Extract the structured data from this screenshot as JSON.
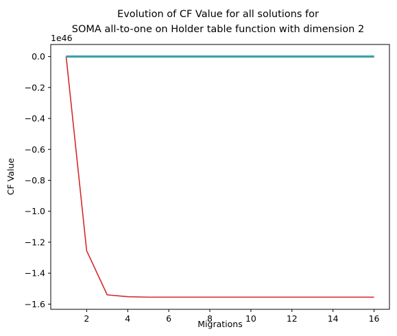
{
  "chart_data": {
    "type": "line",
    "title_lines": [
      "Evolution of CF Value for all solutions for",
      "SOMA all-to-one on Holder table function with dimension 2"
    ],
    "xlabel": "Migrations",
    "ylabel": "CF Value",
    "y_offset_label": "1e46",
    "y_scale": 1e+46,
    "xlim": [
      0.25,
      16.75
    ],
    "ylim": [
      -1.6335,
      0.0778
    ],
    "x_ticks": [
      2,
      4,
      6,
      8,
      10,
      12,
      14,
      16
    ],
    "x_tick_labels": [
      "2",
      "4",
      "6",
      "8",
      "10",
      "12",
      "14",
      "16"
    ],
    "y_ticks": [
      0.0,
      -0.2,
      -0.4,
      -0.6,
      -0.8,
      -1.0,
      -1.2,
      -1.4,
      -1.6
    ],
    "y_tick_labels": [
      "0.0",
      "−0.2",
      "−0.4",
      "−0.6",
      "−0.8",
      "−1.0",
      "−1.2",
      "−1.4",
      "−1.6"
    ],
    "x": [
      1,
      2,
      3,
      4,
      5,
      6,
      7,
      8,
      9,
      10,
      11,
      12,
      13,
      14,
      15,
      16
    ],
    "series": [
      {
        "color": "#d62728",
        "width": 1.6,
        "values": [
          0.0,
          -1.255,
          -1.54,
          -1.552,
          -1.555,
          -1.555,
          -1.555,
          -1.555,
          -1.555,
          -1.555,
          -1.555,
          -1.555,
          -1.555,
          -1.555,
          -1.555,
          -1.555
        ]
      },
      {
        "color": "#1f77b4",
        "width": 1.6,
        "values": [
          0,
          0,
          0,
          0,
          0,
          0,
          0,
          0,
          0,
          0,
          0,
          0,
          0,
          0,
          0,
          0
        ]
      },
      {
        "color": "#ff7f0e",
        "width": 1.6,
        "values": [
          0,
          0,
          0,
          0,
          0,
          0,
          0,
          0,
          0,
          0,
          0,
          0,
          0,
          0,
          0,
          0
        ]
      },
      {
        "color": "#2ca02c",
        "width": 1.6,
        "values": [
          0,
          0,
          0,
          0,
          0,
          0,
          0,
          0,
          0,
          0,
          0,
          0,
          0,
          0,
          0,
          0
        ]
      },
      {
        "color": "#9467bd",
        "width": 1.6,
        "values": [
          0,
          0,
          0,
          0,
          0,
          0,
          0,
          0,
          0,
          0,
          0,
          0,
          0,
          0,
          0,
          0
        ]
      },
      {
        "color": "#8c564b",
        "width": 1.6,
        "values": [
          0,
          0,
          0,
          0,
          0,
          0,
          0,
          0,
          0,
          0,
          0,
          0,
          0,
          0,
          0,
          0
        ]
      },
      {
        "color": "#e377c2",
        "width": 1.6,
        "values": [
          0,
          0,
          0,
          0,
          0,
          0,
          0,
          0,
          0,
          0,
          0,
          0,
          0,
          0,
          0,
          0
        ]
      },
      {
        "color": "#7f7f7f",
        "width": 1.6,
        "values": [
          0,
          0,
          0,
          0,
          0,
          0,
          0,
          0,
          0,
          0,
          0,
          0,
          0,
          0,
          0,
          0
        ]
      },
      {
        "color": "#bcbd22",
        "width": 1.6,
        "values": [
          0,
          0,
          0,
          0,
          0,
          0,
          0,
          0,
          0,
          0,
          0,
          0,
          0,
          0,
          0,
          0
        ]
      },
      {
        "color": "#17becf",
        "width": 1.6,
        "values": [
          0,
          0,
          0,
          0,
          0,
          0,
          0,
          0,
          0,
          0,
          0,
          0,
          0,
          0,
          0,
          0
        ]
      },
      {
        "color": "#3ba3a8",
        "width": 3.2,
        "values": [
          0,
          0,
          0,
          0,
          0,
          0,
          0,
          0,
          0,
          0,
          0,
          0,
          0,
          0,
          0,
          0
        ]
      }
    ]
  }
}
